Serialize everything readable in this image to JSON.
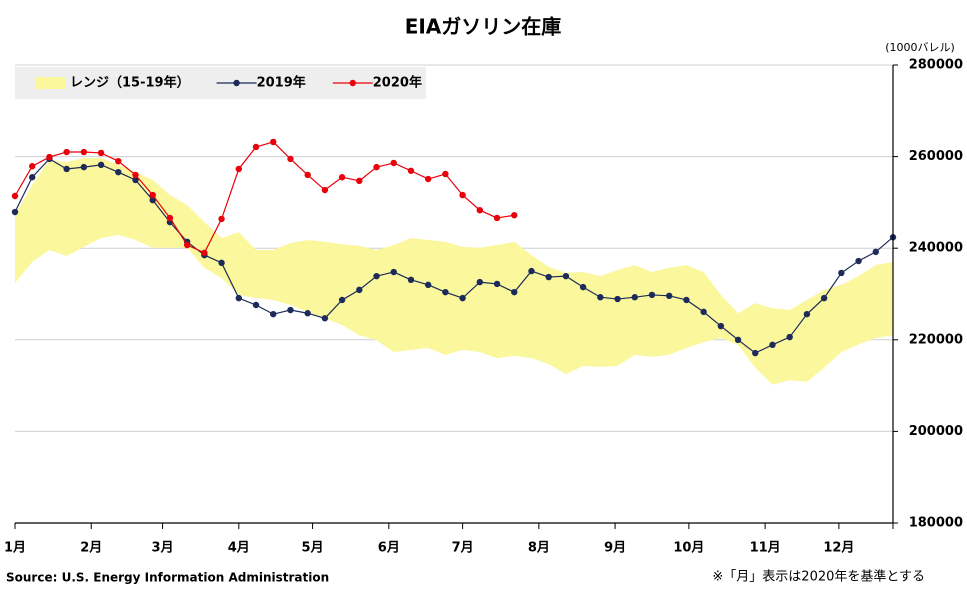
{
  "chart_data": {
    "type": "line",
    "title": "EIAガソリン在庫",
    "unit_label": "(1000バレル)",
    "source": "Source: U.S. Energy Information Administration",
    "note": "※「月」表示は2020年を基準とする",
    "x": [
      1,
      8,
      15,
      22,
      29,
      36,
      43,
      50,
      57,
      64,
      71,
      78,
      85,
      92,
      99,
      106,
      113,
      120,
      127,
      134,
      141,
      148,
      155,
      162,
      169,
      176,
      183,
      190,
      197,
      204,
      211,
      218,
      225,
      232,
      239,
      246,
      253,
      260,
      267,
      274,
      281,
      288,
      295,
      302,
      309,
      316,
      323,
      330,
      337,
      344,
      351,
      358
    ],
    "xlim": [
      1,
      358
    ],
    "xticks": [
      {
        "value": 1,
        "label": "1月"
      },
      {
        "value": 32,
        "label": "2月"
      },
      {
        "value": 61,
        "label": "3月"
      },
      {
        "value": 92,
        "label": "4月"
      },
      {
        "value": 122,
        "label": "5月"
      },
      {
        "value": 153,
        "label": "6月"
      },
      {
        "value": 183,
        "label": "7月"
      },
      {
        "value": 214,
        "label": "8月"
      },
      {
        "value": 245,
        "label": "9月"
      },
      {
        "value": 275,
        "label": "10月"
      },
      {
        "value": 306,
        "label": "11月"
      },
      {
        "value": 336,
        "label": "12月"
      }
    ],
    "ylim": [
      180000,
      280000
    ],
    "yticks": [
      180000,
      200000,
      220000,
      240000,
      260000,
      280000
    ],
    "grid": true,
    "legend": "top-left",
    "series": [
      {
        "name": "レンジ（15-19年）",
        "color": "#fbf79c",
        "kind": "band",
        "upper": [
          247300,
          253800,
          259300,
          258800,
          259700,
          259700,
          258200,
          256600,
          254900,
          251600,
          249400,
          245700,
          242200,
          243500,
          239600,
          239600,
          241100,
          241800,
          241400,
          240900,
          240500,
          239600,
          240700,
          242200,
          241800,
          241400,
          240300,
          240100,
          240700,
          241400,
          238500,
          235900,
          234600,
          234800,
          233900,
          235200,
          236300,
          234800,
          235700,
          236300,
          234800,
          229800,
          225800,
          228000,
          226900,
          226500,
          228700,
          230900,
          232000,
          233900,
          236300,
          237000
        ],
        "lower": [
          232400,
          237000,
          239600,
          238300,
          240300,
          242200,
          242900,
          241800,
          240100,
          240100,
          240100,
          235700,
          233500,
          229800,
          229100,
          228700,
          227600,
          226100,
          224700,
          223200,
          221000,
          219900,
          217300,
          217800,
          218200,
          216700,
          217800,
          217300,
          216000,
          216500,
          216000,
          214700,
          212500,
          214300,
          214100,
          214300,
          216700,
          216300,
          216700,
          218200,
          219500,
          220400,
          218900,
          213900,
          210200,
          211200,
          210800,
          213900,
          217300,
          219000,
          220400,
          221000
        ]
      },
      {
        "name": "2019年",
        "color": "#1c2b5a",
        "kind": "line",
        "values": [
          247900,
          255500,
          259500,
          257300,
          257700,
          258200,
          256600,
          254900,
          250500,
          245700,
          241400,
          238500,
          236800,
          229100,
          227600,
          225600,
          226500,
          225800,
          224700,
          228700,
          230900,
          233900,
          234800,
          233100,
          232000,
          230400,
          229100,
          232600,
          232200,
          230400,
          235000,
          233700,
          233900,
          231500,
          229300,
          228900,
          229300,
          229800,
          229600,
          228700,
          226100,
          223000,
          220000,
          217100,
          218900,
          220600,
          225600,
          229100,
          234600,
          237200,
          239200,
          242400
        ]
      },
      {
        "name": "2020年",
        "color": "#e8000b",
        "kind": "line",
        "values": [
          251400,
          257900,
          259900,
          261000,
          261000,
          260800,
          259000,
          256000,
          251600,
          246600,
          240700,
          239000,
          246400,
          257300,
          262100,
          263200,
          259500,
          256000,
          252700,
          255500,
          254700,
          257700,
          258600,
          256900,
          255100,
          256200,
          251600,
          248300,
          246600,
          247200,
          null,
          null,
          null,
          null,
          null,
          null,
          null,
          null,
          null,
          null,
          null,
          null,
          null,
          null,
          null,
          null,
          null,
          null,
          null,
          null,
          null,
          null
        ]
      }
    ]
  }
}
